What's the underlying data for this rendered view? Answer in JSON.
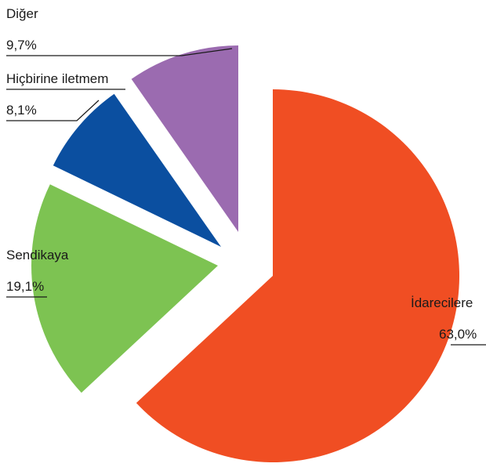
{
  "chart_data": {
    "type": "pie",
    "exploded": true,
    "slices": [
      {
        "name": "İdarecilere",
        "value": 63.0,
        "label": "63,0%",
        "color": "#f04e23"
      },
      {
        "name": "Sendikaya",
        "value": 19.1,
        "label": "19,1%",
        "color": "#7dc352"
      },
      {
        "name": "Hiçbirine iletmem",
        "value": 8.1,
        "label": "8,1%",
        "color": "#0b4fa0"
      },
      {
        "name": "Diğer",
        "value": 9.7,
        "label": "9,7%",
        "color": "#9b6bb0"
      }
    ]
  }
}
